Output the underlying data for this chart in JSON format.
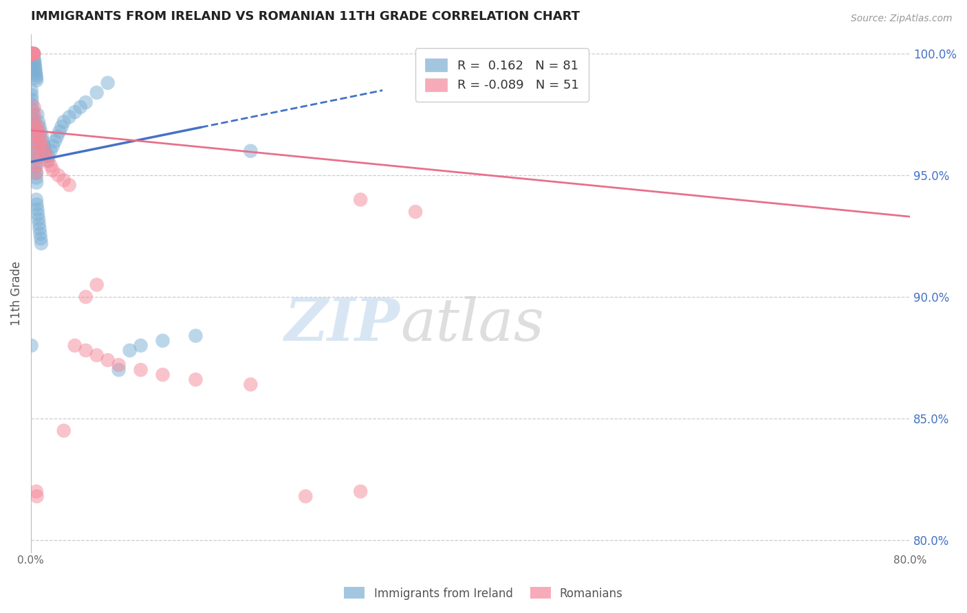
{
  "title": "IMMIGRANTS FROM IRELAND VS ROMANIAN 11TH GRADE CORRELATION CHART",
  "source": "Source: ZipAtlas.com",
  "ylabel": "11th Grade",
  "watermark_zip": "ZIP",
  "watermark_atlas": "atlas",
  "x_min": 0.0,
  "x_max": 0.8,
  "y_min": 0.795,
  "y_max": 1.008,
  "x_ticks": [
    0.0,
    0.1,
    0.2,
    0.3,
    0.4,
    0.5,
    0.6,
    0.7,
    0.8
  ],
  "x_tick_labels": [
    "0.0%",
    "",
    "",
    "",
    "",
    "",
    "",
    "",
    "80.0%"
  ],
  "y_ticks": [
    0.8,
    0.85,
    0.9,
    0.95,
    1.0
  ],
  "y_tick_labels": [
    "80.0%",
    "85.0%",
    "90.0%",
    "95.0%",
    "100.0%"
  ],
  "ireland_R": 0.162,
  "ireland_N": 81,
  "romanian_R": -0.089,
  "romanian_N": 51,
  "ireland_color": "#7BAFD4",
  "romanian_color": "#F4889A",
  "ireland_line_color": "#4472C4",
  "romanian_line_color": "#E8708A",
  "background_color": "#FFFFFF",
  "grid_color": "#CCCCCC",
  "title_color": "#222222",
  "right_label_color": "#4472C4",
  "ireland_scatter_x": [
    0.0005,
    0.0008,
    0.001,
    0.0012,
    0.0015,
    0.0018,
    0.002,
    0.0022,
    0.0025,
    0.0028,
    0.003,
    0.0032,
    0.0035,
    0.0038,
    0.004,
    0.0042,
    0.0045,
    0.0048,
    0.005,
    0.0052,
    0.0005,
    0.0008,
    0.001,
    0.0012,
    0.0015,
    0.0018,
    0.002,
    0.0022,
    0.0025,
    0.0028,
    0.003,
    0.0032,
    0.0035,
    0.0038,
    0.004,
    0.0042,
    0.0045,
    0.0048,
    0.005,
    0.0052,
    0.006,
    0.007,
    0.008,
    0.009,
    0.01,
    0.011,
    0.012,
    0.013,
    0.014,
    0.015,
    0.016,
    0.018,
    0.02,
    0.022,
    0.024,
    0.026,
    0.028,
    0.03,
    0.035,
    0.04,
    0.045,
    0.05,
    0.06,
    0.07,
    0.08,
    0.09,
    0.1,
    0.12,
    0.15,
    0.005,
    0.0055,
    0.006,
    0.0065,
    0.007,
    0.0075,
    0.008,
    0.0085,
    0.009,
    0.0095,
    0.2,
    0.0005
  ],
  "ireland_scatter_y": [
    1.0,
    1.0,
    1.0,
    1.0,
    1.0,
    1.0,
    1.0,
    1.0,
    1.0,
    1.0,
    0.998,
    0.997,
    0.996,
    0.995,
    0.994,
    0.993,
    0.992,
    0.991,
    0.99,
    0.989,
    0.985,
    0.983,
    0.981,
    0.979,
    0.977,
    0.975,
    0.973,
    0.971,
    0.969,
    0.967,
    0.965,
    0.963,
    0.961,
    0.959,
    0.957,
    0.955,
    0.953,
    0.951,
    0.949,
    0.947,
    0.975,
    0.972,
    0.97,
    0.968,
    0.966,
    0.964,
    0.962,
    0.96,
    0.958,
    0.956,
    0.958,
    0.96,
    0.962,
    0.964,
    0.966,
    0.968,
    0.97,
    0.972,
    0.974,
    0.976,
    0.978,
    0.98,
    0.984,
    0.988,
    0.87,
    0.878,
    0.88,
    0.882,
    0.884,
    0.94,
    0.938,
    0.936,
    0.934,
    0.932,
    0.93,
    0.928,
    0.926,
    0.924,
    0.922,
    0.96,
    0.88
  ],
  "romanian_scatter_x": [
    0.0005,
    0.0008,
    0.001,
    0.0012,
    0.0015,
    0.0018,
    0.002,
    0.0022,
    0.0025,
    0.0028,
    0.003,
    0.0032,
    0.0035,
    0.0038,
    0.004,
    0.0042,
    0.0045,
    0.0048,
    0.005,
    0.0052,
    0.006,
    0.007,
    0.008,
    0.009,
    0.01,
    0.012,
    0.014,
    0.016,
    0.018,
    0.02,
    0.025,
    0.03,
    0.035,
    0.04,
    0.05,
    0.06,
    0.07,
    0.08,
    0.1,
    0.12,
    0.15,
    0.2,
    0.3,
    0.3,
    0.25,
    0.06,
    0.05,
    0.005,
    0.0055,
    0.03,
    0.35
  ],
  "romanian_scatter_y": [
    1.0,
    1.0,
    1.0,
    1.0,
    1.0,
    1.0,
    1.0,
    1.0,
    1.0,
    1.0,
    0.978,
    0.975,
    0.972,
    0.969,
    0.966,
    0.963,
    0.96,
    0.957,
    0.954,
    0.951,
    0.97,
    0.968,
    0.966,
    0.964,
    0.962,
    0.96,
    0.958,
    0.956,
    0.954,
    0.952,
    0.95,
    0.948,
    0.946,
    0.88,
    0.878,
    0.876,
    0.874,
    0.872,
    0.87,
    0.868,
    0.866,
    0.864,
    0.94,
    0.82,
    0.818,
    0.905,
    0.9,
    0.82,
    0.818,
    0.845,
    0.935
  ],
  "ireland_line_x0": 0.0,
  "ireland_line_x_solid_end": 0.155,
  "ireland_line_x_dash_end": 0.32,
  "ireland_line_y0": 0.9555,
  "ireland_line_slope": 0.092,
  "romanian_line_x0": 0.0,
  "romanian_line_x1": 0.8,
  "romanian_line_y0": 0.9685,
  "romanian_line_y1": 0.933
}
